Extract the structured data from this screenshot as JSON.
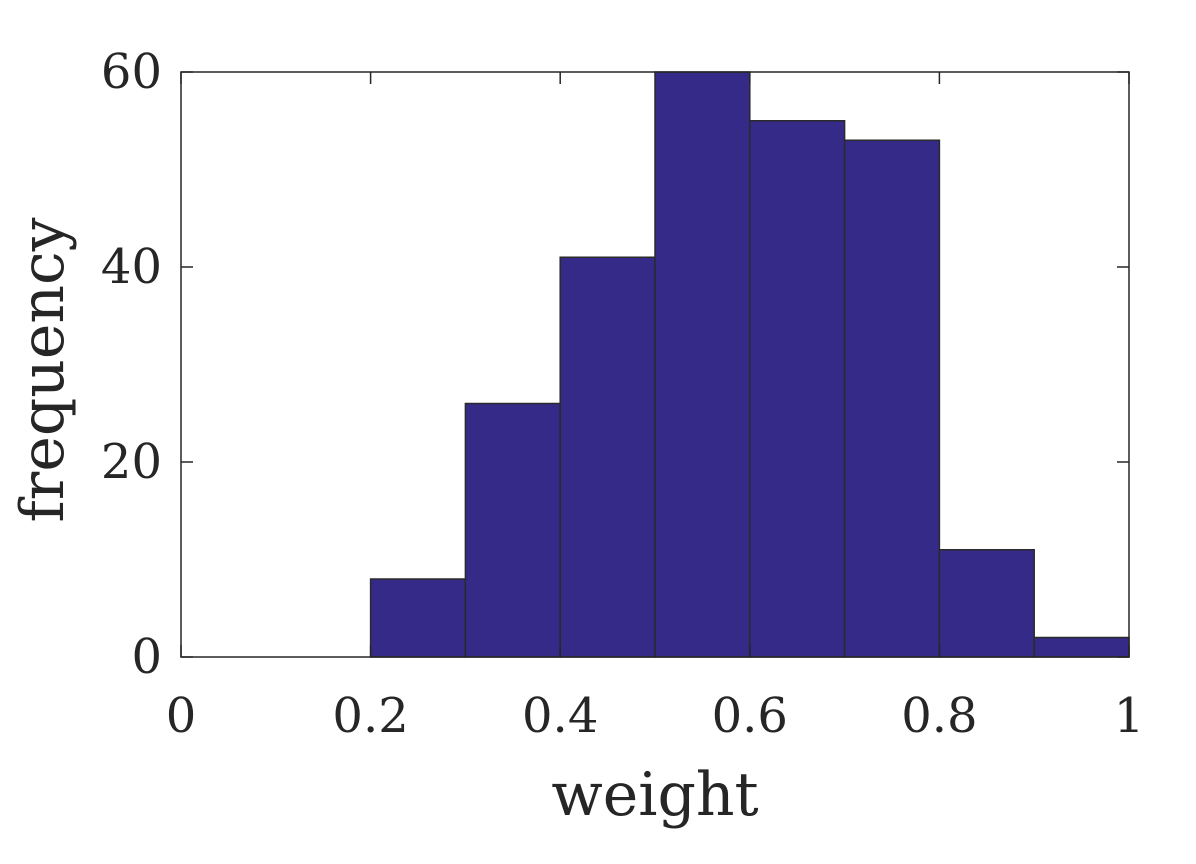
{
  "chart_data": {
    "type": "bar",
    "title": "",
    "xlabel": "weight",
    "ylabel": "frequency",
    "bins": [
      {
        "x0": 0.2,
        "x1": 0.3,
        "value": 8
      },
      {
        "x0": 0.3,
        "x1": 0.4,
        "value": 26
      },
      {
        "x0": 0.4,
        "x1": 0.5,
        "value": 41
      },
      {
        "x0": 0.5,
        "x1": 0.6,
        "value": 60
      },
      {
        "x0": 0.6,
        "x1": 0.7,
        "value": 55
      },
      {
        "x0": 0.7,
        "x1": 0.8,
        "value": 53
      },
      {
        "x0": 0.8,
        "x1": 0.9,
        "value": 11
      },
      {
        "x0": 0.9,
        "x1": 1.0,
        "value": 2
      }
    ],
    "xlim": [
      0,
      1
    ],
    "ylim": [
      0,
      60
    ],
    "xticks": [
      0,
      0.2,
      0.4,
      0.6,
      0.8,
      1
    ],
    "xtick_labels": [
      "0",
      "0.2",
      "0.4",
      "0.6",
      "0.8",
      "1"
    ],
    "yticks": [
      0,
      20,
      40,
      60
    ],
    "ytick_labels": [
      "0",
      "20",
      "40",
      "60"
    ],
    "grid": false,
    "colors": {
      "bar_fill": "#352A87",
      "bar_edge": "#2a2a2a",
      "axis": "#262626"
    }
  }
}
